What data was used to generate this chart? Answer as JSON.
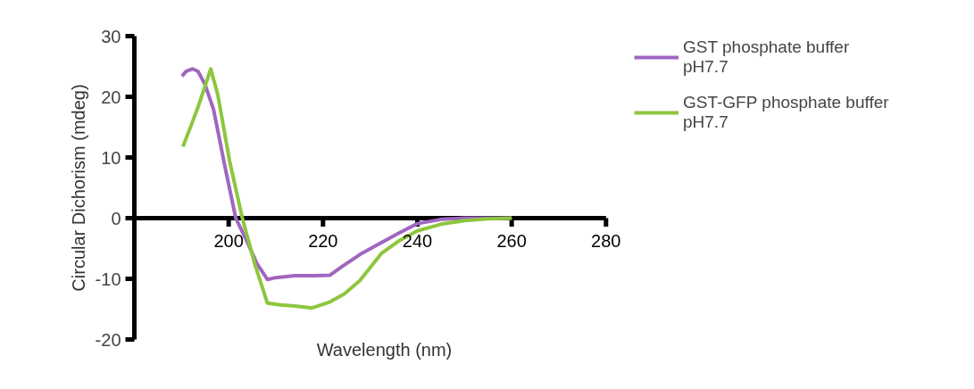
{
  "chart_data": {
    "type": "line",
    "xlabel": "Wavelength (nm)",
    "ylabel": "Circular Dichorism (mdeg)",
    "xlim": [
      180,
      280
    ],
    "ylim": [
      -20,
      30
    ],
    "xticks": [
      200,
      220,
      240,
      260,
      280
    ],
    "yticks": [
      -20,
      -10,
      0,
      10,
      20,
      30
    ],
    "grid": false,
    "legend": "top right",
    "marker": "none",
    "line_style": "solid",
    "series": [
      {
        "name": "GST phosphate buffer pH7.7",
        "color": "#a066c0",
        "x": [
          190.1,
          191,
          192.4,
          193.5,
          195,
          196.8,
          199.2,
          201.5,
          203.8,
          206,
          208.2,
          210,
          214,
          218,
          221.5,
          224,
          227.8,
          232,
          236,
          240,
          245,
          250,
          255,
          260
        ],
        "values": [
          23.4,
          24.2,
          24.6,
          24.2,
          22,
          17.9,
          8.5,
          0,
          -3.7,
          -7.5,
          -10.1,
          -9.8,
          -9.5,
          -9.5,
          -9.4,
          -8,
          -6,
          -4.2,
          -2.5,
          -0.9,
          -0.2,
          0,
          0,
          0
        ]
      },
      {
        "name": "GST-GFP phosphate buffer pH7.7",
        "color": "#8dc63f",
        "x": [
          190.3,
          192,
          193.5,
          195,
          196.2,
          197.7,
          200.2,
          202.9,
          205.5,
          208.2,
          211,
          214,
          217.7,
          221.5,
          224.5,
          227.8,
          232.4,
          236,
          240,
          245,
          250,
          255,
          260
        ],
        "values": [
          11.8,
          15.2,
          18.3,
          21.8,
          24.6,
          20.3,
          9.4,
          0,
          -7.5,
          -14,
          -14.3,
          -14.5,
          -14.8,
          -13.8,
          -12.5,
          -10.3,
          -5.8,
          -3.8,
          -2.1,
          -1,
          -0.4,
          -0.1,
          0
        ]
      }
    ]
  }
}
